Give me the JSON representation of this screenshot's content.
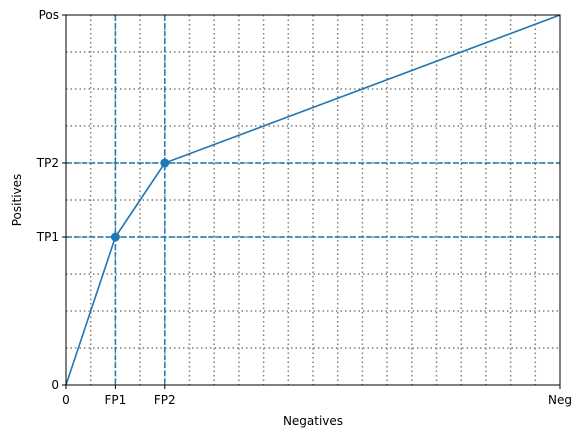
{
  "chart_data": {
    "type": "line",
    "title": "",
    "xlabel": "Negatives",
    "ylabel": "Positives",
    "xlim": [
      0,
      20
    ],
    "ylim": [
      0,
      10
    ],
    "x_ticks": [
      {
        "value": 0,
        "label": "0"
      },
      {
        "value": 2,
        "label": "FP1"
      },
      {
        "value": 4,
        "label": "FP2"
      },
      {
        "value": 20,
        "label": "Neg"
      }
    ],
    "y_ticks": [
      {
        "value": 0,
        "label": "0"
      },
      {
        "value": 4,
        "label": "TP1"
      },
      {
        "value": 6,
        "label": "TP2"
      },
      {
        "value": 10,
        "label": "Pos"
      }
    ],
    "grid": {
      "style": "dotted",
      "x_step": 1,
      "y_step": 1,
      "color": "#7f7f7f"
    },
    "series": [
      {
        "x": [
          0,
          2,
          4,
          20
        ],
        "y": [
          0,
          4,
          6,
          10
        ],
        "markers": [
          false,
          true,
          true,
          false
        ],
        "color": "#1f77b4"
      }
    ],
    "reference_lines": [
      {
        "orientation": "vertical",
        "value": 2,
        "style": "dashed"
      },
      {
        "orientation": "vertical",
        "value": 4,
        "style": "dashed"
      },
      {
        "orientation": "horizontal",
        "value": 4,
        "style": "dashed"
      },
      {
        "orientation": "horizontal",
        "value": 6,
        "style": "dashed"
      }
    ]
  }
}
